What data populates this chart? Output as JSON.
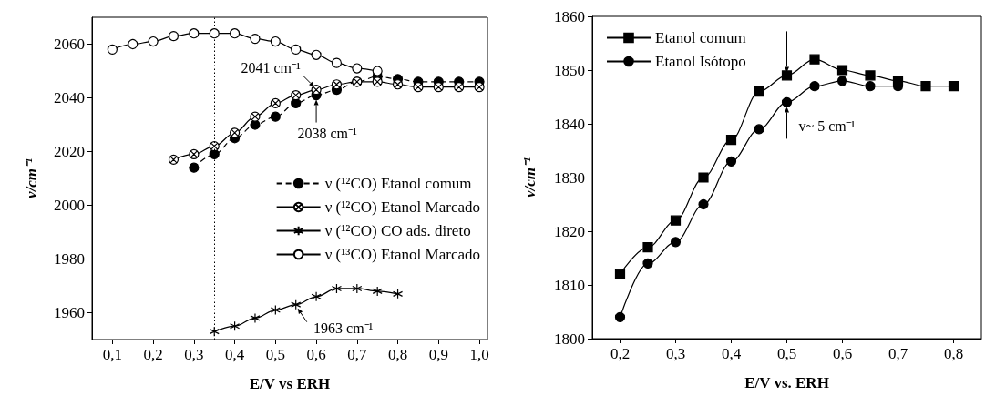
{
  "chart_data": [
    {
      "type": "line",
      "xlabel": "E/V vs ERH",
      "ylabel": "ν/cm⁻¹",
      "xlim": [
        0.05,
        1.02
      ],
      "ylim": [
        1950,
        2070
      ],
      "xticks": [
        {
          "value": 0.1,
          "label": "0,1"
        },
        {
          "value": 0.2,
          "label": "0,2"
        },
        {
          "value": 0.3,
          "label": "0,3"
        },
        {
          "value": 0.4,
          "label": "0,4"
        },
        {
          "value": 0.5,
          "label": "0,5"
        },
        {
          "value": 0.6,
          "label": "0,6"
        },
        {
          "value": 0.7,
          "label": "0,7"
        },
        {
          "value": 0.8,
          "label": "0,8"
        },
        {
          "value": 0.9,
          "label": "0,9"
        },
        {
          "value": 1.0,
          "label": "1,0"
        }
      ],
      "yticks": [
        1960,
        1980,
        2000,
        2020,
        2040,
        2060
      ],
      "legend": "right",
      "grid": false,
      "series": [
        {
          "name": "ν (¹²CO) Etanol comum",
          "color": "#000000",
          "marker": "circle",
          "line_style": "dashed",
          "x": [
            0.3,
            0.35,
            0.4,
            0.45,
            0.5,
            0.55,
            0.6,
            0.65,
            0.7,
            0.75,
            0.8,
            0.85,
            0.9,
            0.95,
            1.0
          ],
          "values": [
            2014,
            2019,
            2025,
            2030,
            2033,
            2038,
            2041,
            2043,
            2046,
            2048,
            2047,
            2046,
            2046,
            2046,
            2046
          ]
        },
        {
          "name": "ν (¹²CO) Etanol Marcado",
          "color": "#000000",
          "marker": "cross",
          "colors": [
            "#ffffff",
            "#ffffff",
            "#ffffff",
            "#ffffff",
            "#ffffff",
            "#ffffff",
            "#ffffff",
            "#ffffff",
            "#ffffff",
            "#ffffff",
            "#ffffff",
            "#ffffff",
            "#ffffff",
            "#ffffff",
            "#ffffff",
            "#ffffff"
          ],
          "line_style": "solid",
          "x": [
            0.25,
            0.3,
            0.35,
            0.4,
            0.45,
            0.5,
            0.55,
            0.6,
            0.65,
            0.7,
            0.75,
            0.8,
            0.85,
            0.9,
            0.95,
            1.0
          ],
          "values": [
            2017,
            2019,
            2022,
            2027,
            2033,
            2038,
            2041,
            2043,
            2045,
            2046,
            2046,
            2045,
            2044,
            2044,
            2044,
            2044
          ]
        },
        {
          "name": "ν (¹²CO) CO ads. direto",
          "color": "#000000",
          "marker": "cross",
          "line_style": "solid",
          "x": [
            0.35,
            0.4,
            0.45,
            0.5,
            0.55,
            0.6,
            0.65,
            0.7,
            0.75,
            0.8
          ],
          "values": [
            1953,
            1955,
            1958,
            1961,
            1963,
            1966,
            1969,
            1969,
            1968,
            1967
          ]
        },
        {
          "name": "ν (¹³CO) Etanol Marcado",
          "color": "#000000",
          "marker": "circle",
          "colors": [
            "#ffffff",
            "#ffffff",
            "#ffffff",
            "#ffffff",
            "#ffffff",
            "#ffffff",
            "#ffffff",
            "#ffffff",
            "#ffffff",
            "#ffffff",
            "#ffffff",
            "#ffffff",
            "#ffffff",
            "#ffffff"
          ],
          "line_style": "solid",
          "x": [
            0.1,
            0.15,
            0.2,
            0.25,
            0.3,
            0.35,
            0.4,
            0.45,
            0.5,
            0.55,
            0.6,
            0.65,
            0.7,
            0.75
          ],
          "values": [
            2058,
            2060,
            2061,
            2063,
            2064,
            2064,
            2064,
            2062,
            2061,
            2058,
            2056,
            2053,
            2051,
            2050
          ]
        }
      ],
      "ref_lines": [
        {
          "axis": "x",
          "value": 0.35,
          "line_style": "dotted",
          "color": "#000000"
        }
      ],
      "annotations": [
        {
          "text": "2041 cm⁻¹",
          "x": 0.6,
          "y": 2043
        },
        {
          "text": "2038 cm⁻¹",
          "x": 0.6,
          "y": 2041
        },
        {
          "text": "1963 cm⁻¹",
          "x": 0.55,
          "y": 1963
        }
      ]
    },
    {
      "type": "line",
      "xlabel": "E/V vs. ERH",
      "ylabel": "ν/cm⁻¹",
      "xlim": [
        0.15,
        0.85
      ],
      "ylim": [
        1800,
        1860
      ],
      "xticks": [
        {
          "value": 0.2,
          "label": "0,2"
        },
        {
          "value": 0.3,
          "label": "0,3"
        },
        {
          "value": 0.4,
          "label": "0,4"
        },
        {
          "value": 0.5,
          "label": "0,5"
        },
        {
          "value": 0.6,
          "label": "0,6"
        },
        {
          "value": 0.7,
          "label": "0,7"
        },
        {
          "value": 0.8,
          "label": "0,8"
        }
      ],
      "yticks": [
        1800,
        1810,
        1820,
        1830,
        1840,
        1850,
        1860
      ],
      "legend": "top left",
      "grid": false,
      "series": [
        {
          "name": "Etanol comum",
          "color": "#000000",
          "marker": "square",
          "line_style": "solid",
          "x": [
            0.2,
            0.25,
            0.3,
            0.35,
            0.4,
            0.45,
            0.5,
            0.55,
            0.6,
            0.65,
            0.7,
            0.75,
            0.8
          ],
          "values": [
            1812,
            1817,
            1822,
            1830,
            1837,
            1846,
            1849,
            1852,
            1850,
            1849,
            1848,
            1847,
            1847
          ]
        },
        {
          "name": "Etanol Isótopo",
          "color": "#000000",
          "marker": "circle",
          "line_style": "solid",
          "x": [
            0.2,
            0.25,
            0.3,
            0.35,
            0.4,
            0.45,
            0.5,
            0.55,
            0.6,
            0.65,
            0.7
          ],
          "values": [
            1804,
            1814,
            1818,
            1825,
            1833,
            1839,
            1844,
            1847,
            1848,
            1847,
            1847
          ]
        }
      ],
      "annotations": [
        {
          "text": "v~ 5 cm⁻¹",
          "x": 0.5,
          "y": 1844
        }
      ]
    }
  ]
}
